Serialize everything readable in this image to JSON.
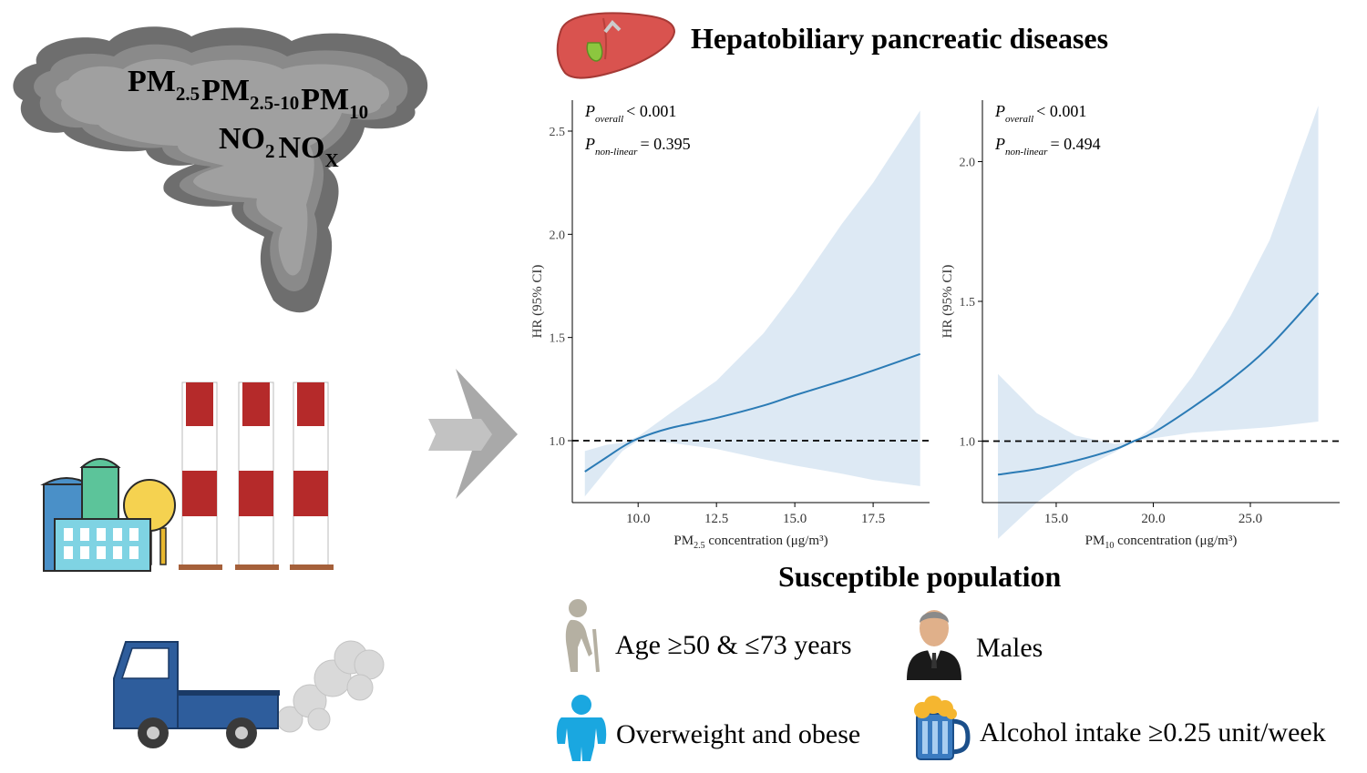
{
  "title": "Hepatobiliary pancreatic diseases",
  "cloud": {
    "line1": [
      {
        "base": "PM",
        "sub": "2.5"
      },
      {
        "base": "PM",
        "sub": "2.5-10"
      },
      {
        "base": "PM",
        "sub": "10"
      }
    ],
    "line2": [
      {
        "base": "NO",
        "sub": "2"
      },
      {
        "base": "NO",
        "sub": "X"
      }
    ]
  },
  "icons": {
    "cloud": "smog-cloud-icon",
    "factory": "factory-icon",
    "truck": "truck-exhaust-icon",
    "arrow": "right-arrow-icon",
    "liver": "liver-icon"
  },
  "susceptible": {
    "heading": "Susceptible population",
    "items": {
      "age": {
        "label": "Age ≥50 & ≤73 years",
        "icon": "elderly-person-icon"
      },
      "males": {
        "label": "Males",
        "icon": "man-avatar-icon"
      },
      "overweight": {
        "label": "Overweight and obese",
        "icon": "overweight-person-icon"
      },
      "alcohol": {
        "label": "Alcohol intake ≥0.25 unit/week",
        "icon": "beer-mug-icon"
      }
    }
  },
  "chart_data": [
    {
      "type": "line",
      "ylabel": "HR (95% CI)",
      "xlabel_parts": {
        "base": "PM",
        "sub": "2.5",
        "rest": " concentration (μg/m³)"
      },
      "xlim": [
        7.9,
        19.3
      ],
      "ylim": [
        0.7,
        2.65
      ],
      "xticks": [
        10.0,
        12.5,
        15.0,
        17.5
      ],
      "xtick_labels": [
        "10.0",
        "12.5",
        "15.0",
        "17.5"
      ],
      "yticks": [
        1.0,
        1.5,
        2.0,
        2.5
      ],
      "ytick_labels": [
        "1.0",
        "1.5",
        "2.0",
        "2.5"
      ],
      "reference_line": 1.0,
      "annotations": [
        {
          "sym": "P",
          "sub": "overall",
          "text": "< 0.001"
        },
        {
          "sym": "P",
          "sub": "non-linear",
          "text": "= 0.395"
        }
      ],
      "series": [
        {
          "x": [
            8.3,
            9.0,
            9.5,
            10.0,
            11.0,
            12.5,
            14.0,
            15.0,
            16.5,
            17.5,
            19.0
          ],
          "y": [
            0.85,
            0.92,
            0.97,
            1.01,
            1.06,
            1.11,
            1.17,
            1.22,
            1.29,
            1.34,
            1.42
          ],
          "lower": [
            0.73,
            0.86,
            0.95,
            1.0,
            0.99,
            0.96,
            0.91,
            0.88,
            0.84,
            0.81,
            0.78
          ],
          "upper": [
            0.95,
            0.98,
            0.99,
            1.02,
            1.13,
            1.29,
            1.52,
            1.72,
            2.05,
            2.25,
            2.6
          ]
        }
      ]
    },
    {
      "type": "line",
      "ylabel": "HR (95% CI)",
      "xlabel_parts": {
        "base": "PM",
        "sub": "10",
        "rest": " concentration (μg/m³)"
      },
      "xlim": [
        11.2,
        29.6
      ],
      "ylim": [
        0.78,
        2.22
      ],
      "xticks": [
        15.0,
        20.0,
        25.0
      ],
      "xtick_labels": [
        "15.0",
        "20.0",
        "25.0"
      ],
      "yticks": [
        1.0,
        1.5,
        2.0
      ],
      "ytick_labels": [
        "1.0",
        "1.5",
        "2.0"
      ],
      "reference_line": 1.0,
      "annotations": [
        {
          "sym": "P",
          "sub": "overall",
          "text": "< 0.001"
        },
        {
          "sym": "P",
          "sub": "non-linear",
          "text": "= 0.494"
        }
      ],
      "series": [
        {
          "x": [
            12.0,
            14.0,
            16.0,
            18.0,
            19.0,
            20.0,
            22.0,
            24.0,
            26.0,
            28.5
          ],
          "y": [
            0.88,
            0.9,
            0.93,
            0.97,
            1.0,
            1.03,
            1.12,
            1.22,
            1.34,
            1.53
          ],
          "lower": [
            0.65,
            0.78,
            0.89,
            0.96,
            1.0,
            1.01,
            1.03,
            1.04,
            1.05,
            1.07
          ],
          "upper": [
            1.24,
            1.1,
            1.02,
            0.99,
            1.0,
            1.05,
            1.23,
            1.45,
            1.72,
            2.2
          ]
        }
      ]
    }
  ]
}
